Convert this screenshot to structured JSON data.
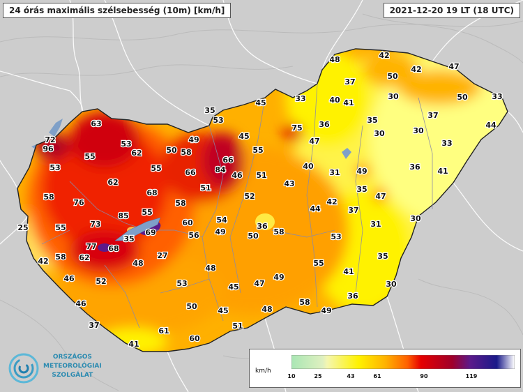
{
  "header": {
    "title": "24 órás maximális szélsebesség (10m) [km/h]",
    "timestamp": "2021-12-20 19 LT  (18 UTC)"
  },
  "logo": {
    "lines": [
      "ORSZÁGOS",
      "METEOROLÓGIAI",
      "SZOLGÁLAT"
    ]
  },
  "legend": {
    "unit": "km/h",
    "ticks": [
      "10",
      "25",
      "43",
      "61",
      "90",
      "119"
    ],
    "colors": [
      "#a9e6b4",
      "#f2f5b3",
      "#fff200",
      "#ffb300",
      "#ff6000",
      "#e60000",
      "#a0002a",
      "#5c1a8a",
      "#1a1a8a",
      "#ffffff"
    ]
  },
  "stations": [
    {
      "v": "72"
    },
    {
      "v": "96"
    },
    {
      "v": "63"
    },
    {
      "v": "53"
    },
    {
      "v": "55"
    },
    {
      "v": "62"
    },
    {
      "v": "50"
    },
    {
      "v": "58"
    },
    {
      "v": "49"
    },
    {
      "v": "35"
    },
    {
      "v": "53"
    },
    {
      "v": "45"
    },
    {
      "v": "33"
    },
    {
      "v": "48"
    },
    {
      "v": "42"
    },
    {
      "v": "42"
    },
    {
      "v": "47"
    },
    {
      "v": "37"
    },
    {
      "v": "50"
    },
    {
      "v": "30"
    },
    {
      "v": "40"
    },
    {
      "v": "41"
    },
    {
      "v": "50"
    },
    {
      "v": "33"
    },
    {
      "v": "44"
    },
    {
      "v": "53"
    },
    {
      "v": "55"
    },
    {
      "v": "66"
    },
    {
      "v": "84"
    },
    {
      "v": "66"
    },
    {
      "v": "46"
    },
    {
      "v": "45"
    },
    {
      "v": "55"
    },
    {
      "v": "75"
    },
    {
      "v": "36"
    },
    {
      "v": "47"
    },
    {
      "v": "35"
    },
    {
      "v": "30"
    },
    {
      "v": "37"
    },
    {
      "v": "30"
    },
    {
      "v": "33"
    },
    {
      "v": "58"
    },
    {
      "v": "62"
    },
    {
      "v": "76"
    },
    {
      "v": "68"
    },
    {
      "v": "51"
    },
    {
      "v": "51"
    },
    {
      "v": "43"
    },
    {
      "v": "40"
    },
    {
      "v": "31"
    },
    {
      "v": "49"
    },
    {
      "v": "35"
    },
    {
      "v": "36"
    },
    {
      "v": "41"
    },
    {
      "v": "47"
    },
    {
      "v": "25"
    },
    {
      "v": "55"
    },
    {
      "v": "85"
    },
    {
      "v": "55"
    },
    {
      "v": "58"
    },
    {
      "v": "52"
    },
    {
      "v": "42"
    },
    {
      "v": "44"
    },
    {
      "v": "37"
    },
    {
      "v": "73"
    },
    {
      "v": "69"
    },
    {
      "v": "60"
    },
    {
      "v": "54"
    },
    {
      "v": "36"
    },
    {
      "v": "58"
    },
    {
      "v": "31"
    },
    {
      "v": "30"
    },
    {
      "v": "35"
    },
    {
      "v": "68"
    },
    {
      "v": "56"
    },
    {
      "v": "49"
    },
    {
      "v": "50"
    },
    {
      "v": "53"
    },
    {
      "v": "77"
    },
    {
      "v": "62"
    },
    {
      "v": "27"
    },
    {
      "v": "42"
    },
    {
      "v": "58"
    },
    {
      "v": "48"
    },
    {
      "v": "55"
    },
    {
      "v": "35"
    },
    {
      "v": "46"
    },
    {
      "v": "52"
    },
    {
      "v": "41"
    },
    {
      "v": "53"
    },
    {
      "v": "45"
    },
    {
      "v": "47"
    },
    {
      "v": "49"
    },
    {
      "v": "30"
    },
    {
      "v": "48"
    },
    {
      "v": "36"
    },
    {
      "v": "46"
    },
    {
      "v": "50"
    },
    {
      "v": "45"
    },
    {
      "v": "48"
    },
    {
      "v": "58"
    },
    {
      "v": "49"
    },
    {
      "v": "51"
    },
    {
      "v": "37"
    },
    {
      "v": "61"
    },
    {
      "v": "60"
    },
    {
      "v": "41"
    }
  ]
}
